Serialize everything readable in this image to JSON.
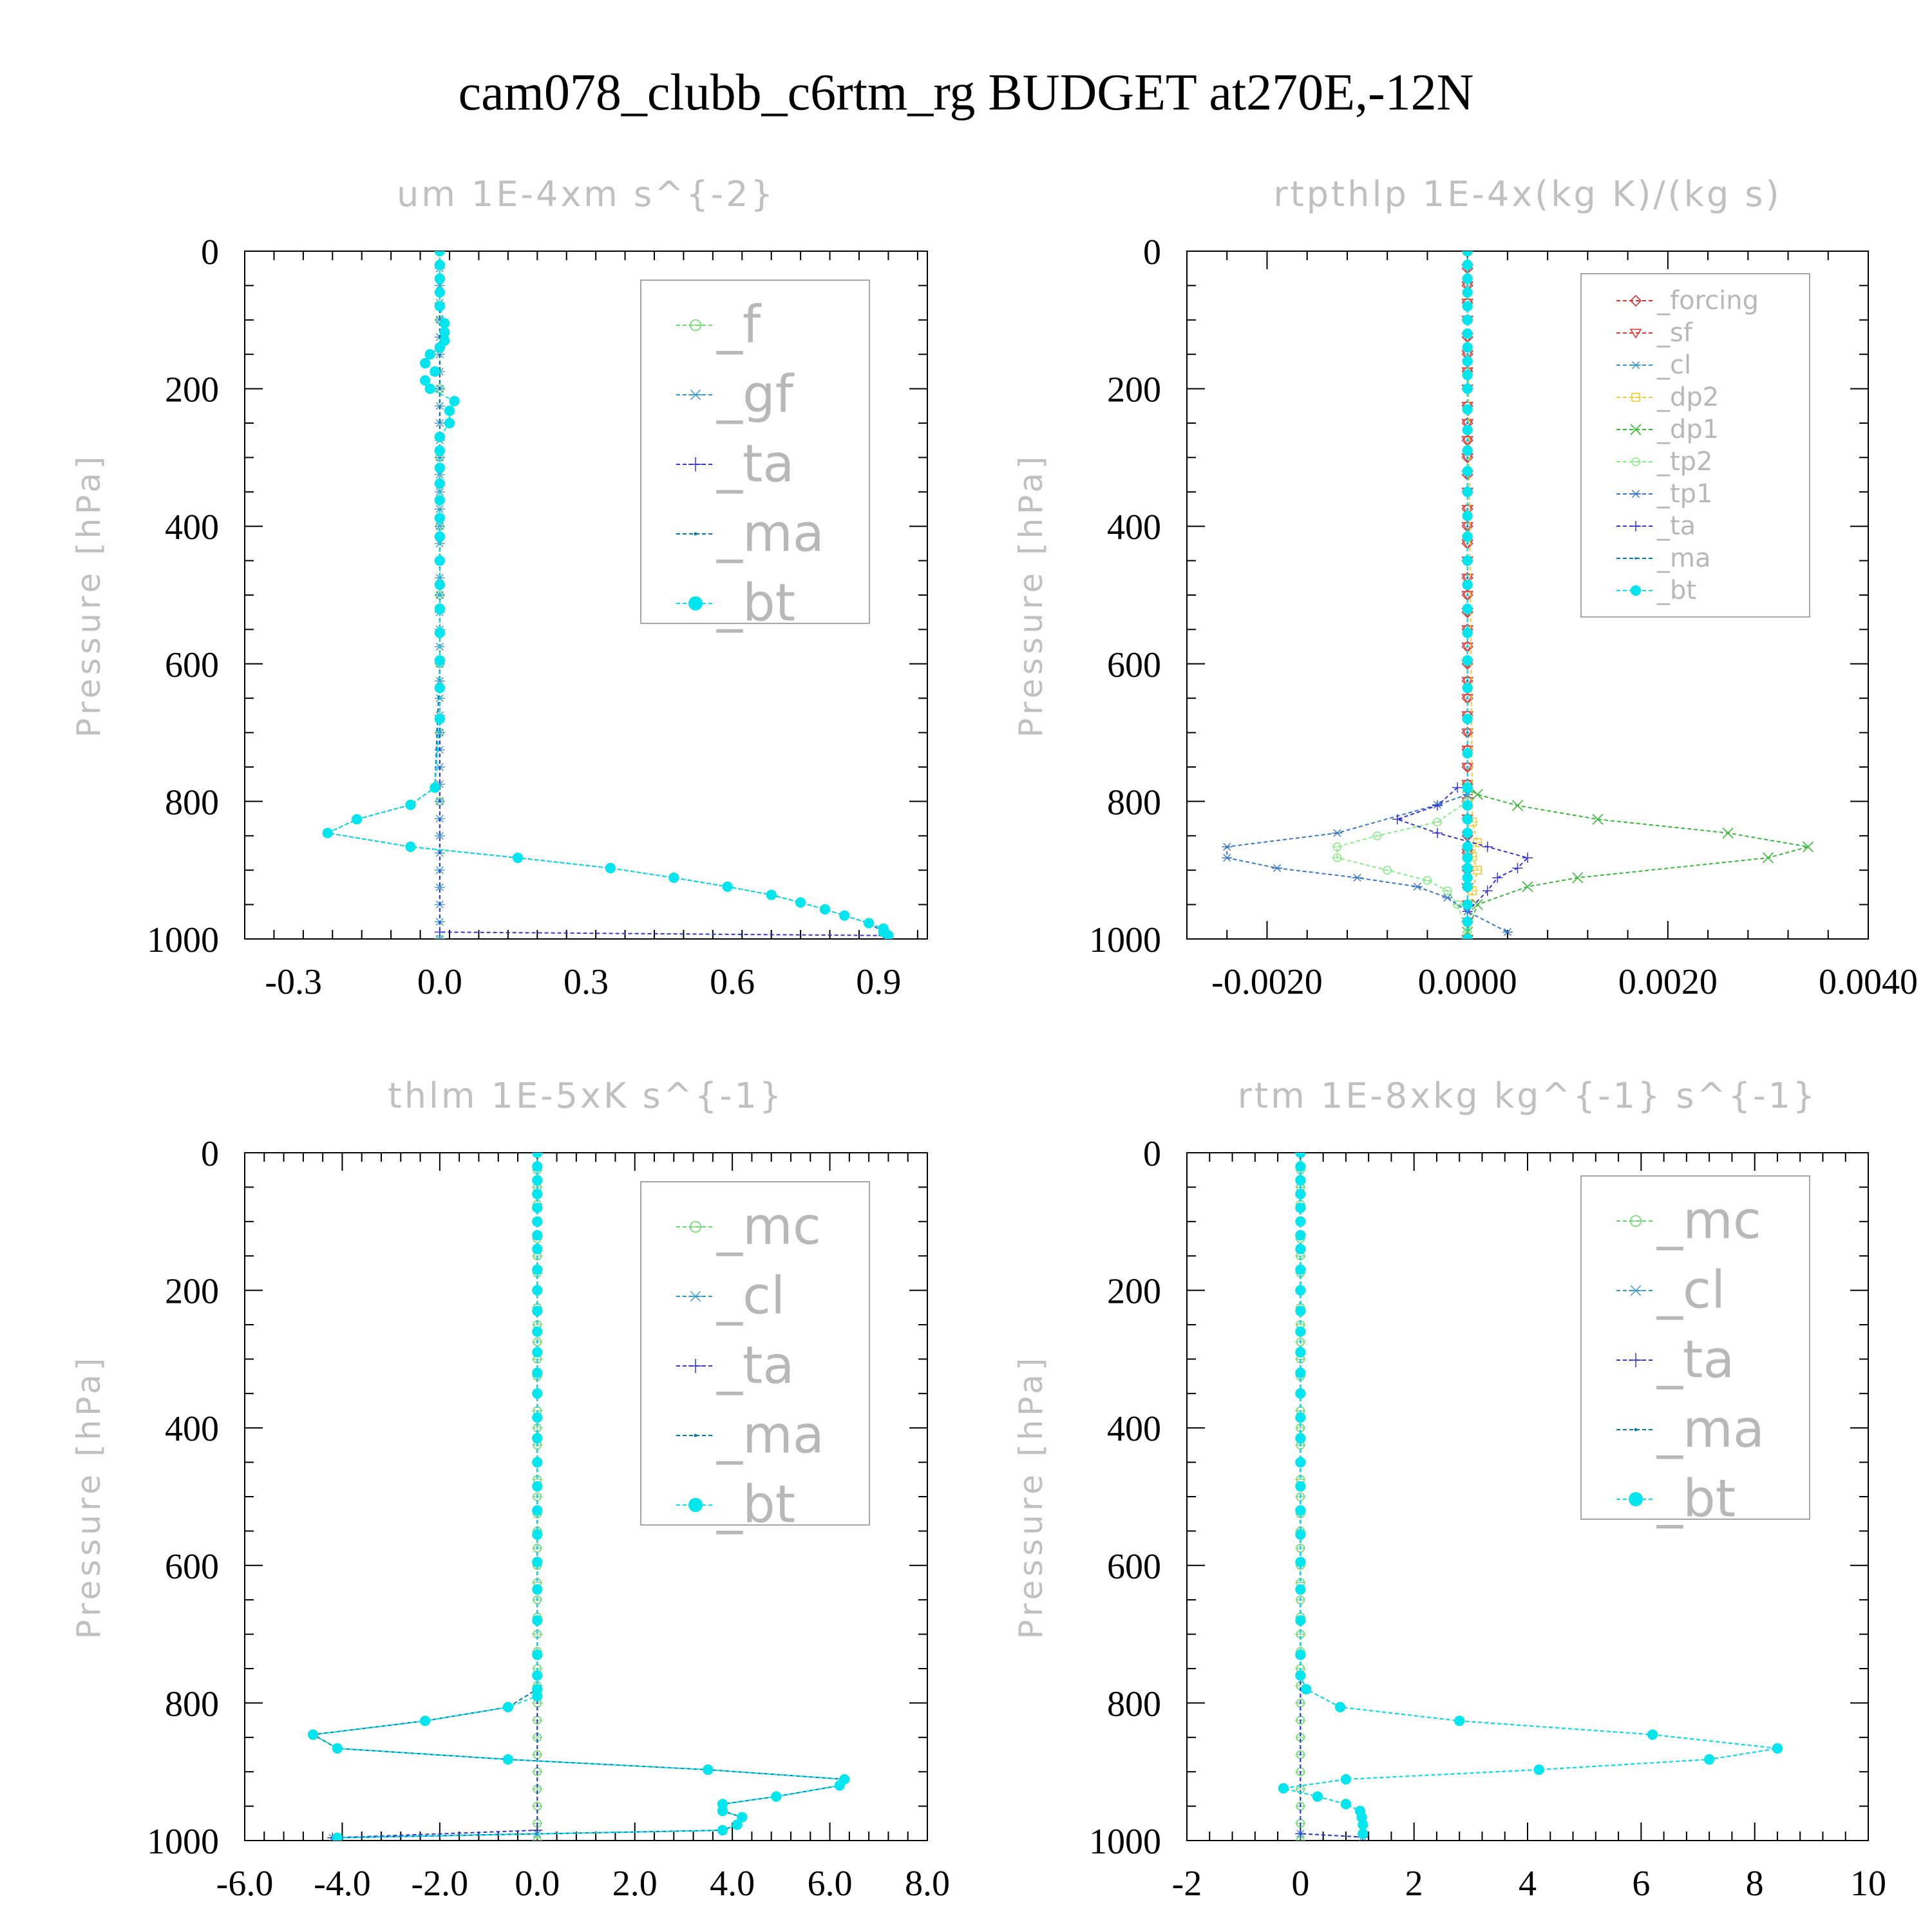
{
  "title": "cam078_clubb_c6rtm_rg  BUDGET at270E,-12N",
  "colors": {
    "_f": "#66dd66",
    "_gf": "#3399cc",
    "_ta": "#3333dd",
    "_ma": "#0077aa",
    "_bt": "#00e5ee",
    "_forcing": "#dd3333",
    "_sf": "#ee3333",
    "_cl": "#3399cc",
    "_dp2": "#eecc33",
    "_dp1": "#33bb33",
    "_tp2": "#88ee88",
    "_tp1": "#3377cc",
    "_mc": "#66dd66"
  },
  "chart_data": [
    {
      "type": "line",
      "title": "um  1E-4xm s^{-2}",
      "ylabel": "Pressure [hPa]",
      "ylim": [
        1000,
        0
      ],
      "xlim": [
        -0.4,
        1.0
      ],
      "xticks": [
        "-0.3",
        "0.0",
        "0.3",
        "0.6",
        "0.9"
      ],
      "xtick_values": [
        -0.3,
        0.0,
        0.3,
        0.6,
        0.9
      ],
      "yticks": [
        "0",
        "200",
        "400",
        "600",
        "800",
        "1000"
      ],
      "ytick_values": [
        0,
        200,
        400,
        600,
        800,
        1000
      ],
      "legend": [
        "_f",
        "_gf",
        "_ta",
        "_ma",
        "_bt"
      ],
      "legend_position": "top-right",
      "series": [
        {
          "name": "_f",
          "x": [
            0,
            0,
            0,
            0,
            0,
            0,
            0,
            0,
            0,
            0
          ],
          "y": [
            0,
            100,
            200,
            300,
            400,
            500,
            600,
            700,
            800,
            1000
          ]
        },
        {
          "name": "_gf",
          "x": [
            0,
            0,
            0
          ],
          "y": [
            0,
            500,
            1000
          ]
        },
        {
          "name": "_ta",
          "x": [
            0,
            0,
            0.91
          ],
          "y": [
            0,
            990,
            995
          ]
        },
        {
          "name": "_ma",
          "x": [
            0,
            0,
            -0.01,
            -0.06,
            -0.17,
            -0.23,
            -0.06,
            0.16,
            0.35,
            0.48,
            0.59,
            0.68,
            0.74,
            0.79,
            0.83,
            0.88,
            0.91
          ],
          "y": [
            0,
            600,
            780,
            805,
            826,
            846,
            866,
            882,
            897,
            911,
            924,
            936,
            947,
            957,
            966,
            977,
            990
          ]
        },
        {
          "name": "_bt",
          "x": [
            0,
            0,
            0,
            0,
            0,
            0.01,
            0.01,
            0.01,
            0,
            -0.02,
            -0.03,
            -0.01,
            -0.03,
            -0.02,
            0.03,
            0.02,
            0.02,
            0,
            0,
            0,
            0,
            0,
            0,
            0,
            0,
            0,
            0,
            0,
            0,
            0,
            0,
            -0.01,
            -0.06,
            -0.17,
            -0.23,
            -0.06,
            0.16,
            0.35,
            0.48,
            0.59,
            0.68,
            0.74,
            0.79,
            0.83,
            0.88,
            0.91,
            0.91,
            0.92
          ],
          "y": [
            0,
            20,
            40,
            60,
            80,
            105,
            118,
            130,
            140,
            150,
            163,
            175,
            188,
            200,
            218,
            232,
            250,
            270,
            290,
            315,
            338,
            362,
            388,
            415,
            450,
            485,
            520,
            555,
            595,
            635,
            680,
            780,
            805,
            826,
            846,
            866,
            882,
            897,
            911,
            924,
            936,
            947,
            957,
            966,
            977,
            985,
            990,
            995
          ]
        }
      ]
    },
    {
      "type": "line",
      "title": "rtpthlp  1E-4x(kg K)/(kg s)",
      "ylabel": "Pressure [hPa]",
      "ylim": [
        1000,
        0
      ],
      "xlim": [
        -0.0028,
        0.004
      ],
      "xticks": [
        "-0.0020",
        "0.0000",
        "0.0020",
        "0.0040"
      ],
      "xtick_values": [
        -0.002,
        0.0,
        0.002,
        0.004
      ],
      "yticks": [
        "0",
        "200",
        "400",
        "600",
        "800",
        "1000"
      ],
      "ytick_values": [
        0,
        200,
        400,
        600,
        800,
        1000
      ],
      "legend": [
        "_forcing",
        "_sf",
        "_cl",
        "_dp2",
        "_dp1",
        "_tp2",
        "_tp1",
        "_ta",
        "_ma",
        "_bt"
      ],
      "legend_position": "top-right",
      "series": [
        {
          "name": "_forcing",
          "x": [
            0,
            0
          ],
          "y": [
            0,
            1000
          ]
        },
        {
          "name": "_sf",
          "x": [
            0,
            0
          ],
          "y": [
            0,
            1000
          ]
        },
        {
          "name": "_cl",
          "x": [
            0,
            0
          ],
          "y": [
            0,
            1000
          ]
        },
        {
          "name": "_dp2",
          "x": [
            0,
            5e-05,
            0.0001,
            5e-05,
            0.0001,
            5e-05,
            0
          ],
          "y": [
            0,
            830,
            860,
            880,
            900,
            930,
            1000
          ]
        },
        {
          "name": "_dp1",
          "x": [
            0,
            0.0001,
            0.0005,
            0.0013,
            0.0026,
            0.0034,
            0.003,
            0.0011,
            0.0006,
            0.0001,
            0
          ],
          "y": [
            780,
            790,
            806,
            826,
            846,
            866,
            882,
            911,
            924,
            950,
            990
          ]
        },
        {
          "name": "_tp2",
          "x": [
            0,
            -0.0003,
            -0.0009,
            -0.0013,
            -0.0013,
            -0.0008,
            -0.0004,
            -0.0002,
            -0.0001,
            0
          ],
          "y": [
            800,
            830,
            850,
            866,
            882,
            900,
            915,
            930,
            950,
            990
          ]
        },
        {
          "name": "_tp1",
          "x": [
            0,
            -0.0003,
            -0.0013,
            -0.0024,
            -0.0024,
            -0.0019,
            -0.0011,
            -0.0005,
            -0.0002,
            0,
            0.0004
          ],
          "y": [
            790,
            805,
            846,
            866,
            882,
            897,
            911,
            924,
            940,
            960,
            990
          ]
        },
        {
          "name": "_ta",
          "x": [
            -0.0001,
            -0.0003,
            -0.0007,
            -0.0003,
            0.0002,
            0.0006,
            0.0005,
            0.0003,
            0.0002,
            0
          ],
          "y": [
            780,
            806,
            826,
            846,
            866,
            882,
            897,
            911,
            930,
            960
          ]
        },
        {
          "name": "_ma",
          "x": [
            0,
            0
          ],
          "y": [
            0,
            1000
          ]
        },
        {
          "name": "_bt",
          "x": [
            0,
            0,
            0,
            0,
            0,
            0,
            0,
            0,
            0,
            0,
            0,
            0,
            0,
            0,
            0,
            0,
            0,
            0,
            0,
            0,
            0,
            0,
            0,
            0,
            0,
            0,
            0,
            0,
            0,
            0,
            0,
            0,
            0,
            0,
            0,
            0,
            0,
            0
          ],
          "y": [
            0,
            20,
            40,
            60,
            80,
            100,
            120,
            140,
            160,
            180,
            200,
            230,
            260,
            290,
            320,
            350,
            385,
            415,
            450,
            485,
            520,
            555,
            595,
            635,
            680,
            730,
            780,
            806,
            826,
            846,
            866,
            882,
            897,
            911,
            924,
            950,
            975,
            1000
          ]
        }
      ]
    },
    {
      "type": "line",
      "title": "thlm  1E-5xK s^{-1}",
      "ylabel": "Pressure [hPa]",
      "ylim": [
        1000,
        0
      ],
      "xlim": [
        -6.0,
        8.0
      ],
      "xticks": [
        "-6.0",
        "-4.0",
        "-2.0",
        "0.0",
        "2.0",
        "4.0",
        "6.0",
        "8.0"
      ],
      "xtick_values": [
        -6.0,
        -4.0,
        -2.0,
        0.0,
        2.0,
        4.0,
        6.0,
        8.0
      ],
      "yticks": [
        "0",
        "200",
        "400",
        "600",
        "800",
        "1000"
      ],
      "ytick_values": [
        0,
        200,
        400,
        600,
        800,
        1000
      ],
      "legend": [
        "_mc",
        "_cl",
        "_ta",
        "_ma",
        "_bt"
      ],
      "legend_position": "top-right",
      "series": [
        {
          "name": "_mc",
          "x": [
            0,
            0,
            0,
            0
          ],
          "y": [
            0,
            500,
            800,
            1000
          ]
        },
        {
          "name": "_cl",
          "x": [
            0,
            0,
            -4.2
          ],
          "y": [
            0,
            990,
            996
          ]
        },
        {
          "name": "_ta",
          "x": [
            0,
            0,
            -4.2
          ],
          "y": [
            0,
            985,
            996
          ]
        },
        {
          "name": "_ma",
          "x": [
            0,
            0,
            -0.6,
            -2.3,
            -4.6,
            -4.1,
            -0.6,
            3.5,
            6.3,
            6.2,
            4.9,
            3.8,
            3.8,
            4.2,
            4.1,
            3.8,
            -4.1
          ],
          "y": [
            0,
            780,
            806,
            826,
            846,
            866,
            882,
            897,
            911,
            920,
            936,
            947,
            957,
            966,
            977,
            985,
            996
          ]
        },
        {
          "name": "_bt",
          "x": [
            0,
            0,
            0,
            0,
            0,
            0,
            0,
            0,
            0,
            0,
            0,
            0,
            0,
            0,
            0,
            0,
            0,
            0,
            0,
            0,
            0,
            0,
            0,
            0,
            0,
            0,
            0,
            0,
            -0.6,
            -2.3,
            -4.6,
            -4.1,
            -0.6,
            3.5,
            6.3,
            6.2,
            4.9,
            3.8,
            3.8,
            4.2,
            4.1,
            3.8,
            -4.1
          ],
          "y": [
            0,
            20,
            40,
            60,
            80,
            100,
            120,
            140,
            170,
            200,
            230,
            260,
            290,
            320,
            350,
            385,
            415,
            450,
            485,
            520,
            555,
            595,
            635,
            680,
            730,
            760,
            780,
            790,
            806,
            826,
            846,
            866,
            882,
            897,
            911,
            920,
            936,
            947,
            957,
            966,
            977,
            985,
            996
          ]
        }
      ]
    },
    {
      "type": "line",
      "title": "rtm  1E-8xkg kg^{-1} s^{-1}",
      "ylabel": "Pressure [hPa]",
      "ylim": [
        1000,
        0
      ],
      "xlim": [
        -2,
        10
      ],
      "xticks": [
        "-2",
        "0",
        "2",
        "4",
        "6",
        "8",
        "10"
      ],
      "xtick_values": [
        -2,
        0,
        2,
        4,
        6,
        8,
        10
      ],
      "yticks": [
        "0",
        "200",
        "400",
        "600",
        "800",
        "1000"
      ],
      "ytick_values": [
        0,
        200,
        400,
        600,
        800,
        1000
      ],
      "legend": [
        "_mc",
        "_cl",
        "_ta",
        "_ma",
        "_bt"
      ],
      "legend_position": "top-right",
      "series": [
        {
          "name": "_mc",
          "x": [
            0,
            0,
            0,
            0
          ],
          "y": [
            0,
            500,
            800,
            1000
          ]
        },
        {
          "name": "_cl",
          "x": [
            0,
            0,
            1.1
          ],
          "y": [
            0,
            990,
            995
          ]
        },
        {
          "name": "_ta",
          "x": [
            0,
            0,
            1.1
          ],
          "y": [
            0,
            990,
            995
          ]
        },
        {
          "name": "_ma",
          "x": [
            0,
            0,
            0.1,
            0.7,
            2.8,
            6.2,
            8.4,
            7.2,
            4.2,
            0.8,
            -0.3,
            0.3,
            0.8,
            1.05,
            1.08,
            1.1,
            1.1
          ],
          "y": [
            0,
            760,
            780,
            806,
            826,
            846,
            866,
            882,
            897,
            911,
            924,
            936,
            947,
            957,
            966,
            977,
            990
          ]
        },
        {
          "name": "_bt",
          "x": [
            0,
            0,
            0,
            0,
            0,
            0,
            0,
            0,
            0,
            0,
            0,
            0,
            0,
            0,
            0,
            0,
            0,
            0,
            0,
            0,
            0,
            0,
            0,
            0,
            0,
            0,
            0.1,
            0.7,
            2.8,
            6.2,
            8.4,
            7.2,
            4.2,
            0.8,
            -0.3,
            0.3,
            0.8,
            1.05,
            1.08,
            1.1,
            1.1
          ],
          "y": [
            0,
            20,
            40,
            60,
            80,
            100,
            120,
            140,
            170,
            200,
            230,
            260,
            290,
            320,
            350,
            385,
            415,
            450,
            485,
            520,
            555,
            595,
            635,
            680,
            730,
            760,
            780,
            806,
            826,
            846,
            866,
            882,
            897,
            911,
            924,
            936,
            947,
            957,
            966,
            977,
            990
          ]
        }
      ]
    }
  ]
}
